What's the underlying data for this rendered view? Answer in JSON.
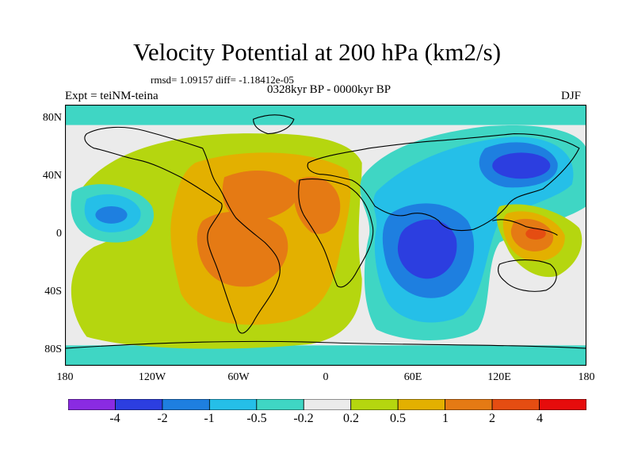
{
  "title": "Velocity Potential at 200 hPa (km2/s)",
  "stats": "rmsd= 1.09157 diff= -1.18412e-05",
  "experiment": "Expt = teiNM-teina",
  "period": "0328kyr BP - 0000kyr BP",
  "season": "DJF",
  "axes": {
    "lat_labels": [
      "80N",
      "40N",
      "0",
      "40S",
      "80S"
    ],
    "lon_labels": [
      "180",
      "120W",
      "60W",
      "0",
      "60E",
      "120E",
      "180"
    ]
  },
  "colorbar": {
    "labels": [
      "-4",
      "-2",
      "-1",
      "-0.5",
      "-0.2",
      "0.2",
      "0.5",
      "1",
      "2",
      "4"
    ],
    "colors": [
      "#8a2be2",
      "#2c3ee0",
      "#1e7fe0",
      "#25bfe8",
      "#3fd6c4",
      "#ebebeb",
      "#b5d60f",
      "#e3b000",
      "#e57a14",
      "#e54d12",
      "#e60c0c"
    ]
  },
  "chart_data": {
    "type": "heatmap",
    "variable": "Velocity Potential at 200 hPa",
    "units": "km2/s",
    "x_range": [
      -180,
      180
    ],
    "y_range": [
      -90,
      90
    ],
    "features": [
      {
        "name": "western-pacific-indian-negative-center",
        "lon": 70,
        "lat": -5,
        "level": "-2"
      },
      {
        "name": "north-pacific-negative-center",
        "lon": 135,
        "lat": 38,
        "level": "-2"
      },
      {
        "name": "eastern-pacific-negative-center",
        "lon": -150,
        "lat": 12,
        "level": "-1"
      },
      {
        "name": "south-america-positive-center",
        "lon": -60,
        "lat": -10,
        "level": "1"
      },
      {
        "name": "north-atlantic-positive-center",
        "lon": -40,
        "lat": 28,
        "level": "1"
      },
      {
        "name": "north-africa-positive-center",
        "lon": 5,
        "lat": 25,
        "level": "1"
      },
      {
        "name": "maritime-continent-positive-center",
        "lon": 130,
        "lat": 0,
        "level": "2"
      }
    ]
  }
}
